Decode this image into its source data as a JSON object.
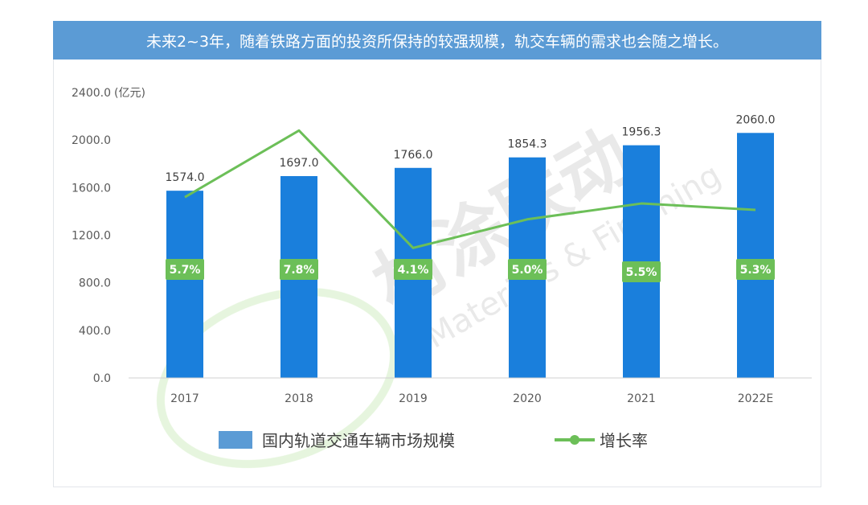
{
  "title": "未来2~3年，随着铁路方面的投资所保持的较强规模，轨交车辆的需求也会随之增长。",
  "chart_data": {
    "type": "bar",
    "categories": [
      "2017",
      "2018",
      "2019",
      "2020",
      "2021",
      "2022E"
    ],
    "series": [
      {
        "name": "国内轨道交通车辆市场规模",
        "kind": "bar",
        "color": "#1a7fdc",
        "values": [
          1574.0,
          1697.0,
          1766.0,
          1854.3,
          1956.3,
          2060.0
        ],
        "labels": [
          "1574.0",
          "1697.0",
          "1766.0",
          "1854.3",
          "1956.3",
          "2060.0"
        ]
      },
      {
        "name": "增长率",
        "kind": "line",
        "color": "#6cbf58",
        "values": [
          5.7,
          7.8,
          4.1,
          5.0,
          5.5,
          5.3
        ],
        "labels": [
          "5.7%",
          "7.8%",
          "4.1%",
          "5.0%",
          "5.5%",
          "5.3%"
        ]
      }
    ],
    "ylabel": "(亿元)",
    "ylim": [
      0,
      2400
    ],
    "yticks": [
      "0.0",
      "400.0",
      "800.0",
      "1200.0",
      "1600.0",
      "2000.0",
      "2400.0"
    ],
    "y2lim": [
      0,
      9
    ],
    "grid": false,
    "legend": "bottom"
  },
  "watermark": {
    "brand": "材涂联动",
    "brand_en": "Materials & Finishing"
  }
}
